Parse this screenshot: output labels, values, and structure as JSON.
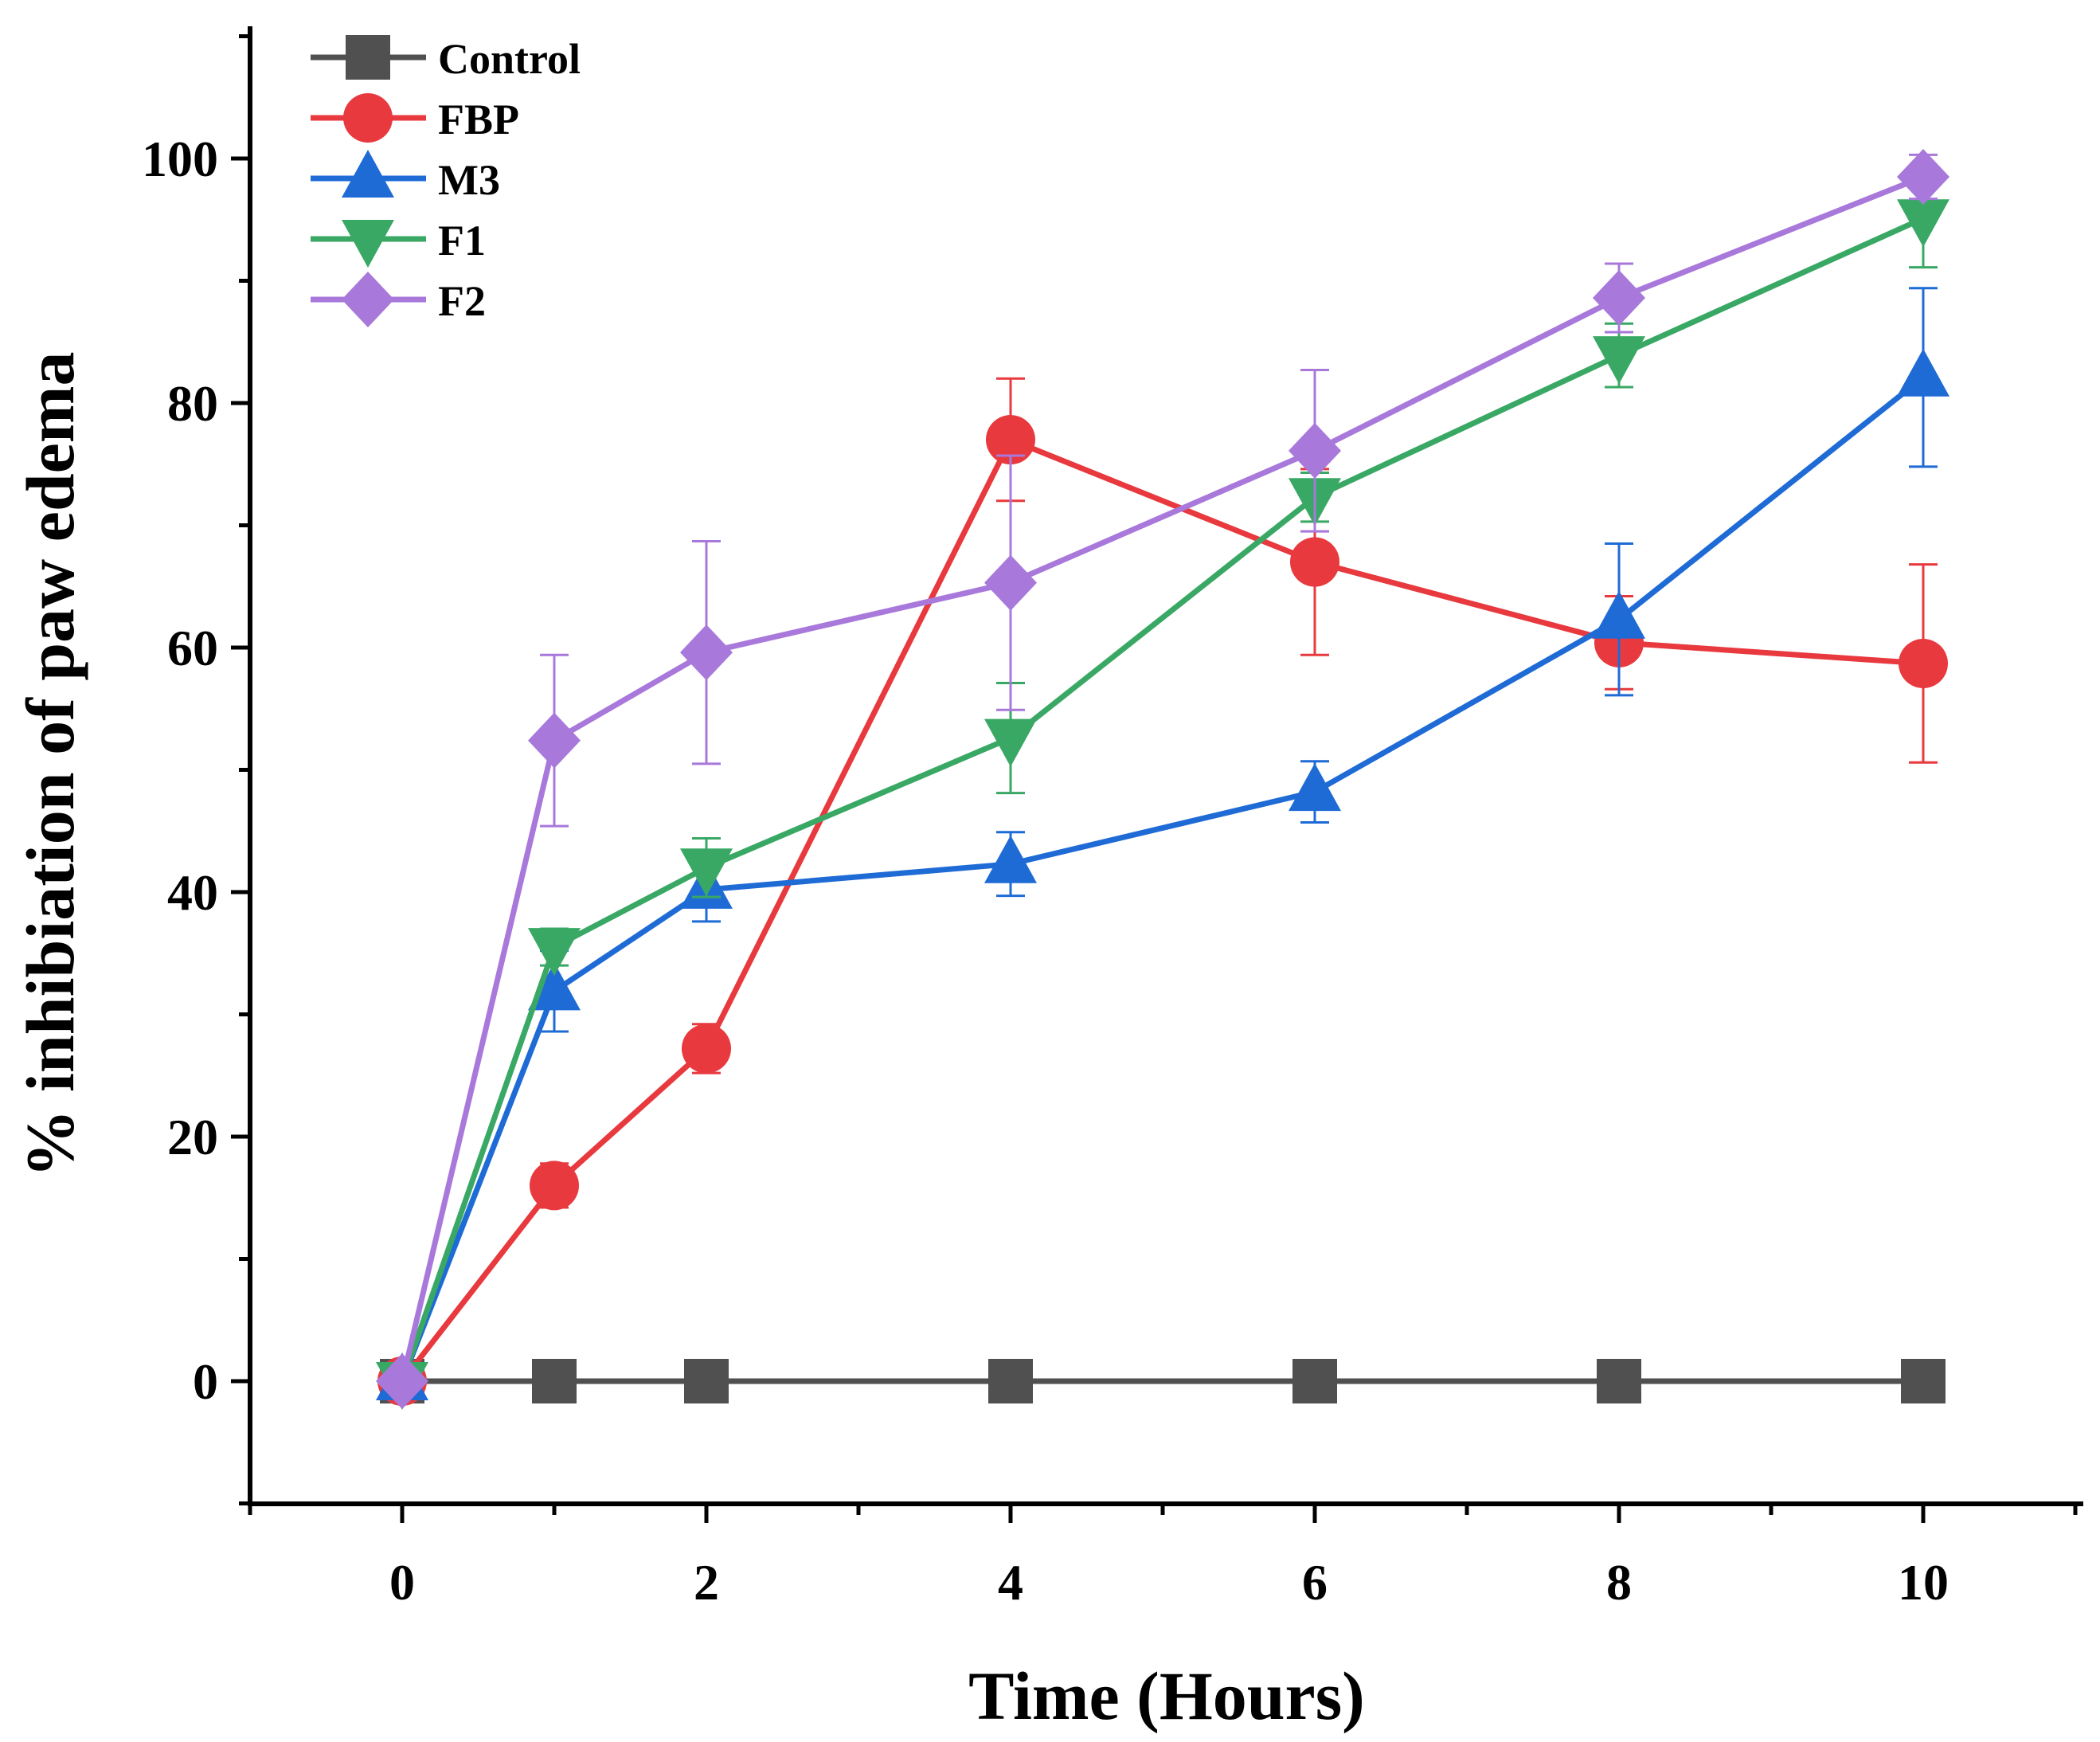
{
  "chart_data": {
    "type": "line",
    "title": "",
    "xlabel": "Time (Hours)",
    "ylabel": "% inhibiation of paw edema",
    "xlim": [
      -1,
      11
    ],
    "ylim": [
      -10,
      110
    ],
    "x_ticks": [
      0,
      2,
      4,
      6,
      8,
      10
    ],
    "x_tick_labels": [
      "0",
      "2",
      "4",
      "6",
      "8",
      "10"
    ],
    "y_ticks": [
      0,
      20,
      40,
      60,
      80,
      100
    ],
    "y_tick_labels": [
      "0",
      "20",
      "40",
      "60",
      "80",
      "100"
    ],
    "legend_position": "top-left",
    "grid": false,
    "x": [
      0,
      1,
      2,
      4,
      6,
      8,
      10
    ],
    "series": [
      {
        "name": "Control",
        "color": "#505050",
        "marker": "square",
        "values": [
          0,
          0,
          0,
          0,
          0,
          0,
          0
        ],
        "errors": [
          0,
          0,
          0,
          0,
          0,
          0,
          0
        ]
      },
      {
        "name": "FBP",
        "color": "#e8393e",
        "marker": "circle",
        "values": [
          0,
          16.0,
          27.2,
          77.0,
          67.0,
          60.4,
          58.7
        ],
        "errors": [
          0,
          1.8,
          2.0,
          5.0,
          7.6,
          3.8,
          8.1
        ]
      },
      {
        "name": "M3",
        "color": "#1f6bd6",
        "marker": "triangle-up",
        "values": [
          0,
          31.9,
          40.2,
          42.3,
          48.2,
          62.3,
          82.1
        ],
        "errors": [
          0,
          3.3,
          2.6,
          2.6,
          2.5,
          6.2,
          7.3
        ]
      },
      {
        "name": "F1",
        "color": "#3aa865",
        "marker": "triangle-down",
        "values": [
          0,
          35.5,
          42.0,
          52.6,
          72.3,
          83.9,
          95.1
        ],
        "errors": [
          0,
          1.5,
          2.4,
          4.5,
          2.0,
          2.6,
          4.0
        ]
      },
      {
        "name": "F2",
        "color": "#a878db",
        "marker": "diamond",
        "values": [
          0,
          52.4,
          59.6,
          65.3,
          76.1,
          88.6,
          98.5
        ],
        "errors": [
          0,
          7.0,
          9.1,
          10.4,
          6.6,
          2.8,
          1.8
        ]
      }
    ]
  }
}
